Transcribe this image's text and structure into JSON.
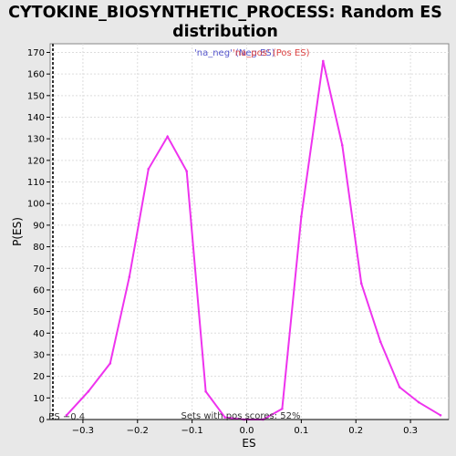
{
  "chart_data": {
    "type": "line",
    "title_line1": "CYTOKINE_BIOSYNTHETIC_PROCESS: Random ES",
    "title_line2": "distribution",
    "xlabel": "ES",
    "ylabel": "P(ES)",
    "xlim": [
      -0.36,
      0.37
    ],
    "ylim": [
      0,
      174
    ],
    "x_ticks": [
      -0.3,
      -0.2,
      -0.1,
      0.0,
      0.1,
      0.2,
      0.3
    ],
    "x_tick_labels": [
      "−0.3",
      "−0.2",
      "−0.1",
      "0.0",
      "0.1",
      "0.2",
      "0.3"
    ],
    "y_ticks": [
      0,
      10,
      20,
      30,
      40,
      50,
      60,
      70,
      80,
      90,
      100,
      110,
      120,
      130,
      140,
      150,
      160,
      170
    ],
    "grid": true,
    "legend": {
      "position": "top-center",
      "entries": [
        {
          "label": "'na_neg' (Neg ES)",
          "color": "#5555cc"
        },
        {
          "label": "'na_pos' (Pos ES)",
          "color": "#dd4444"
        }
      ]
    },
    "series": [
      {
        "color": "#ee33ee",
        "x": [
          -0.33,
          -0.29,
          -0.25,
          -0.215,
          -0.18,
          -0.145,
          -0.11,
          -0.075,
          -0.04,
          -0.005,
          0.03,
          0.065,
          0.1,
          0.14,
          0.175,
          0.21,
          0.245,
          0.28,
          0.315,
          0.355
        ],
        "y": [
          2,
          13,
          26,
          66,
          116,
          131,
          115,
          13,
          1,
          0,
          0,
          5,
          94,
          166,
          127,
          63,
          36,
          15,
          8,
          2
        ]
      }
    ],
    "actual_es_marker": {
      "x": -0.355,
      "label": "ES −0.4"
    },
    "annotation": "Sets with pos scores: 52%"
  }
}
